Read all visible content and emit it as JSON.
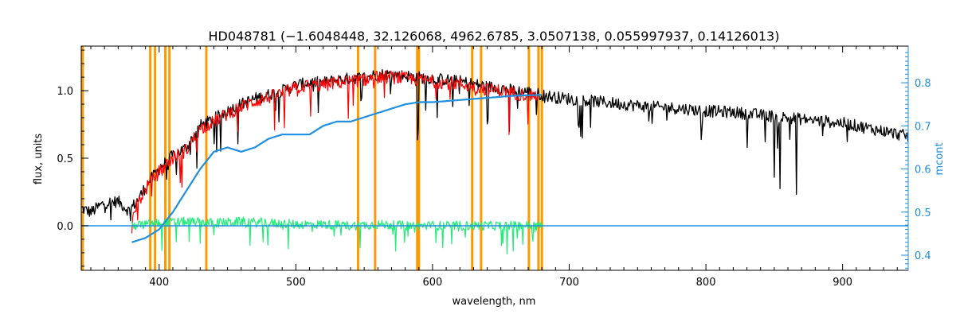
{
  "chart_data": {
    "type": "line",
    "title": "HD048781   (−1.6048448, 32.126068, 4962.6785, 3.0507138, 0.055997937, 0.14126013)",
    "xlabel": "wavelength, nm",
    "ylabel": "flux, units",
    "ylabel_right": "mcont",
    "xlim": [
      343,
      948
    ],
    "ylim": [
      -0.33,
      1.33
    ],
    "ylim_right": [
      0.365,
      0.885
    ],
    "x_ticks": [
      400,
      500,
      600,
      700,
      800,
      900
    ],
    "y_ticks": [
      0.0,
      0.5,
      1.0
    ],
    "y_tick_labels": [
      "0.0",
      "0.5",
      "1.0"
    ],
    "y_ticks_right": [
      0.4,
      0.5,
      0.6,
      0.7,
      0.8
    ],
    "y_tick_labels_right": [
      "0.4",
      "0.5",
      "0.6",
      "0.7",
      "0.8"
    ],
    "grid": false,
    "colors": {
      "observed": "#000000",
      "model": "#ff0000",
      "residual": "#22ee77",
      "continuum": "#1f8fe0",
      "mask": "#ff9900",
      "right_axis": "#1f8fe0"
    },
    "mask_lines": [
      344,
      393.5,
      397,
      404.5,
      407.5,
      434.5,
      545.5,
      558,
      588.8,
      590,
      629,
      635.5,
      670.5,
      677.5,
      680
    ],
    "absorption_dips": [
      {
        "x": 588.9,
        "depth": 0.45
      },
      {
        "x": 589.6,
        "depth": 0.35
      },
      {
        "x": 656.3,
        "depth": 0.35
      },
      {
        "x": 760.5,
        "depth": 0.15
      },
      {
        "x": 850,
        "depth": 0.45
      },
      {
        "x": 854.2,
        "depth": 0.55
      },
      {
        "x": 866.2,
        "depth": 0.55
      }
    ],
    "series": [
      {
        "key": "observed",
        "x": [
          343,
          350,
          360,
          370,
          378,
          385,
          392,
          400,
          410,
          420,
          430,
          440,
          450,
          460,
          470,
          480,
          490,
          500,
          510,
          520,
          530,
          540,
          550,
          560,
          570,
          580,
          590,
          600,
          610,
          620,
          630,
          640,
          650,
          660,
          670,
          680,
          690,
          700,
          720,
          740,
          760,
          780,
          800,
          820,
          840,
          860,
          880,
          900,
          920,
          940,
          948
        ],
        "y": [
          0.13,
          0.1,
          0.17,
          0.18,
          0.11,
          0.2,
          0.32,
          0.42,
          0.52,
          0.58,
          0.74,
          0.79,
          0.85,
          0.9,
          0.94,
          0.97,
          1.0,
          1.04,
          1.06,
          1.06,
          1.08,
          1.09,
          1.1,
          1.12,
          1.12,
          1.11,
          1.1,
          1.09,
          1.08,
          1.07,
          1.05,
          1.03,
          1.02,
          1.0,
          0.99,
          0.97,
          0.95,
          0.94,
          0.92,
          0.9,
          0.88,
          0.87,
          0.85,
          0.84,
          0.82,
          0.8,
          0.78,
          0.76,
          0.72,
          0.68,
          0.66
        ]
      },
      {
        "key": "model",
        "x": [
          380,
          385,
          392,
          400,
          410,
          420,
          430,
          440,
          450,
          460,
          470,
          480,
          490,
          500,
          510,
          520,
          530,
          540,
          550,
          560,
          570,
          580,
          590,
          600,
          610,
          620,
          630,
          640,
          650,
          660,
          670,
          678
        ],
        "y": [
          0.07,
          0.18,
          0.3,
          0.4,
          0.5,
          0.56,
          0.72,
          0.77,
          0.83,
          0.88,
          0.92,
          0.95,
          0.98,
          1.02,
          1.04,
          1.04,
          1.06,
          1.07,
          1.08,
          1.1,
          1.1,
          1.09,
          1.08,
          1.07,
          1.06,
          1.05,
          1.03,
          1.01,
          1.0,
          0.98,
          0.97,
          0.96
        ]
      },
      {
        "key": "residual",
        "x": [
          380,
          400,
          420,
          440,
          460,
          480,
          500,
          520,
          540,
          560,
          580,
          600,
          620,
          640,
          660,
          670,
          680
        ],
        "y": [
          0.0,
          0.02,
          0.03,
          0.02,
          0.03,
          0.02,
          0.01,
          0.01,
          0.0,
          0.01,
          0.0,
          0.0,
          0.0,
          0.0,
          0.0,
          0.0,
          0.0
        ]
      },
      {
        "key": "continuum",
        "axis": "right",
        "x": [
          380,
          390,
          400,
          410,
          420,
          430,
          440,
          450,
          460,
          470,
          480,
          490,
          500,
          510,
          520,
          530,
          540,
          550,
          560,
          570,
          580,
          590,
          600,
          620,
          640,
          660,
          680
        ],
        "y": [
          0.43,
          0.44,
          0.46,
          0.5,
          0.55,
          0.6,
          0.64,
          0.65,
          0.64,
          0.65,
          0.67,
          0.68,
          0.68,
          0.68,
          0.7,
          0.71,
          0.71,
          0.72,
          0.73,
          0.74,
          0.75,
          0.755,
          0.755,
          0.76,
          0.765,
          0.77,
          0.772
        ]
      }
    ]
  }
}
